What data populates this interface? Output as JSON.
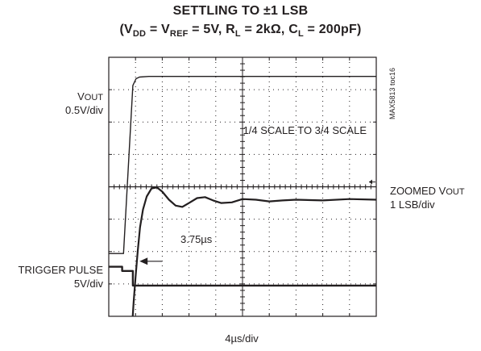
{
  "chart_data": {
    "type": "line",
    "title_line1": "SETTLING TO ±1 LSB",
    "title_line2_parts": {
      "open": "(V",
      "vdd_sub": "DD",
      "eq1": " = V",
      "vref_sub": "REF",
      "eq2": " = 5V, R",
      "rl_sub": "L",
      "eq3": " = 2kΩ, C",
      "cl_sub": "L",
      "eq4": " = 200pF)"
    },
    "left_labels": {
      "vout_name": "V",
      "vout_sub": "OUT",
      "vout_scale": "0.5V/div",
      "trigger_name": "TRIGGER PULSE",
      "trigger_scale": "5V/div"
    },
    "right_labels": {
      "zoomed_name": "ZOOMED V",
      "zoomed_sub": "OUT",
      "zoomed_scale": "1 LSB/div"
    },
    "annotations": {
      "scale_step": "1/4 SCALE TO 3/4 SCALE",
      "settling_time": "3.75µs",
      "tag": "MAX5813 toc16"
    },
    "xlabel": "4µs/div",
    "grid": {
      "h_divisions": 10,
      "v_divisions": 8
    },
    "xlim_div": [
      0,
      10
    ],
    "ylim_div": [
      0,
      8
    ],
    "series": [
      {
        "name": "VOUT",
        "x_div": [
          0,
          0.55,
          0.9,
          1.02,
          1.15,
          1.5,
          3,
          10
        ],
        "y_div": [
          1.94,
          1.94,
          7.13,
          7.34,
          7.39,
          7.41,
          7.41,
          7.41
        ]
      },
      {
        "name": "ZOOMED VOUT",
        "x_div": [
          0.88,
          0.93,
          1.0,
          1.08,
          1.17,
          1.28,
          1.42,
          1.6,
          1.8,
          2.0,
          2.25,
          2.5,
          2.75,
          3.0,
          3.3,
          3.6,
          3.9,
          4.2,
          4.6,
          5.0,
          5.5,
          6.0,
          6.5,
          7.0,
          8.0,
          9.0,
          10
        ],
        "y_div": [
          -0.2,
          0.45,
          1.2,
          2.0,
          2.75,
          3.3,
          3.7,
          3.95,
          3.98,
          3.85,
          3.6,
          3.42,
          3.38,
          3.5,
          3.65,
          3.68,
          3.58,
          3.5,
          3.52,
          3.62,
          3.6,
          3.55,
          3.58,
          3.6,
          3.58,
          3.62,
          3.6
        ]
      },
      {
        "name": "TRIGGER PULSE",
        "x_div": [
          0,
          0.5,
          0.5,
          0.9,
          0.9,
          10
        ],
        "y_div": [
          1.53,
          1.53,
          1.4,
          1.4,
          0.95,
          0.95
        ]
      }
    ],
    "markers": {
      "step_marker_y_div": 4.15,
      "settling_arrow_x_div": 1.0,
      "settling_arrow_y_div": 1.7
    }
  }
}
